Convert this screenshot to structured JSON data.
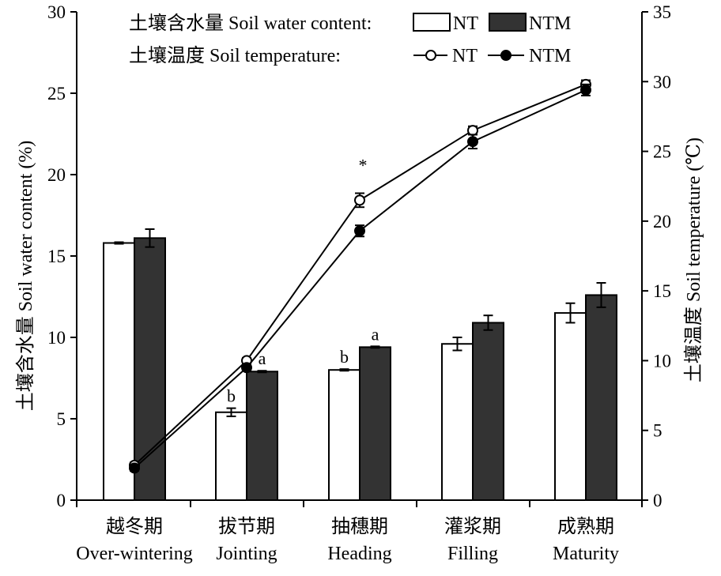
{
  "chart_data": {
    "type": "bar",
    "categories": [
      {
        "zh": "越冬期",
        "en": "Over-wintering"
      },
      {
        "zh": "拔节期",
        "en": "Jointing"
      },
      {
        "zh": "抽穗期",
        "en": "Heading"
      },
      {
        "zh": "灌浆期",
        "en": "Filling"
      },
      {
        "zh": "成熟期",
        "en": "Maturity"
      }
    ],
    "left_axis": {
      "label": "土壤含水量 Soil water content (%)",
      "ylim": [
        0,
        30
      ],
      "ticks": [
        "0",
        "5",
        "10",
        "15",
        "20",
        "25",
        "30"
      ]
    },
    "right_axis": {
      "label": "土壤温度 Soil temperature (℃)",
      "ylim": [
        0,
        35
      ],
      "ticks": [
        "0",
        "5",
        "10",
        "15",
        "20",
        "25",
        "30",
        "35"
      ]
    },
    "bar_series": [
      {
        "name": "NT",
        "values": [
          15.8,
          5.4,
          8.0,
          9.6,
          11.5
        ],
        "errors": [
          0.05,
          0.25,
          0.05,
          0.4,
          0.6
        ],
        "labels": [
          "",
          "b",
          "b",
          "",
          ""
        ],
        "color": "#ffffff"
      },
      {
        "name": "NTM",
        "values": [
          16.1,
          7.9,
          9.4,
          10.9,
          12.6
        ],
        "errors": [
          0.55,
          0.05,
          0.05,
          0.45,
          0.75
        ],
        "labels": [
          "",
          "a",
          "a",
          "",
          ""
        ],
        "color": "#333333"
      }
    ],
    "line_series": [
      {
        "name": "NT",
        "values": [
          2.5,
          10.0,
          21.5,
          26.5,
          29.8
        ],
        "errors": [
          0.2,
          0.2,
          0.5,
          0.3,
          0.3
        ],
        "marker": "open-circle"
      },
      {
        "name": "NTM",
        "values": [
          2.3,
          9.5,
          19.3,
          25.7,
          29.4
        ],
        "errors": [
          0.2,
          0.2,
          0.4,
          0.5,
          0.4
        ],
        "marker": "filled-circle"
      }
    ],
    "annotations": [
      {
        "text": "*",
        "category_index": 2
      }
    ],
    "legend": {
      "placement": "top",
      "bar_title": "土壤含水量 Soil water content:",
      "line_title": "土壤温度 Soil temperature:",
      "bar_entries": [
        "NT",
        "NTM"
      ],
      "line_entries": [
        "NT",
        "NTM"
      ]
    },
    "grid": false
  }
}
